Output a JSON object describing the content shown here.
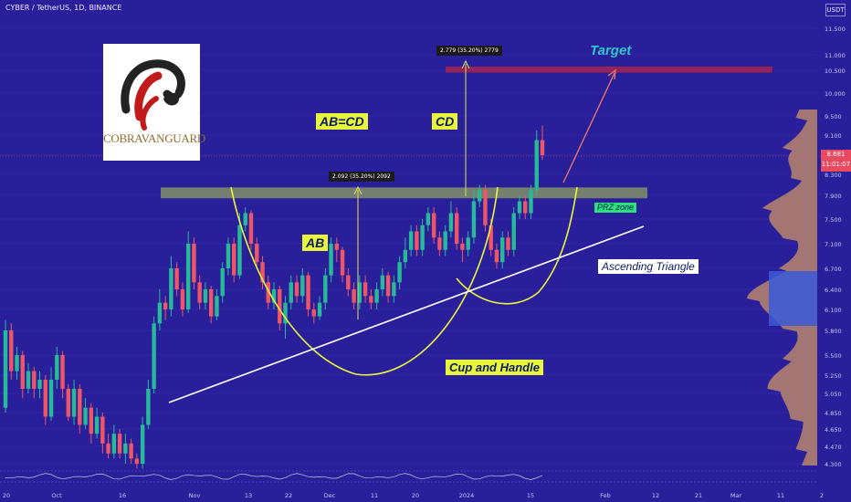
{
  "header": {
    "symbol_line": "CYBER / TetherUS, 1D, BINANCE",
    "currency": "USDT"
  },
  "colors": {
    "background": "#2a1f9a",
    "up": "#27b99a",
    "down": "#ee5566",
    "zone": "#7d8a6a",
    "target_zone": "#a5264f",
    "accent": "#e8f63a"
  },
  "logo": {
    "text": "COBRAVANGUARD",
    "icon": "cobra-icon"
  },
  "annotations": {
    "ab_cd": "AB=CD",
    "cd": "CD",
    "ab": "AB",
    "target": "Target",
    "prz": "PRZ zone",
    "ascending_triangle": "Ascending Triangle",
    "cup_handle": "Cup and Handle",
    "measure_1": "2.092 (35.20%) 2092",
    "measure_2": "2.779 (35.20%) 2779"
  },
  "price_badge": {
    "price": "8.681",
    "countdown": "11:01:07"
  },
  "chart_data": {
    "type": "candlestick",
    "y_axis_ticks": [
      "11.500",
      "11.000",
      "10.500",
      "10.000",
      "9.500",
      "9.100",
      "8.700",
      "8.300",
      "7.900",
      "7.500",
      "7.100",
      "6.700",
      "6.400",
      "6.100",
      "5.800",
      "5.500",
      "5.250",
      "5.050",
      "4.850",
      "4.650",
      "4.470",
      "4.300"
    ],
    "x_axis_ticks": [
      "20",
      "Oct",
      "16",
      "Nov",
      "13",
      "22",
      "Dec",
      "11",
      "20",
      "2024",
      "15",
      "Feb",
      "12",
      "21",
      "Mar",
      "11",
      "2"
    ],
    "last_price": 8.681,
    "prz_zone": [
      7.85,
      8.05
    ],
    "target_zone": [
      10.45,
      10.62
    ],
    "candles": [
      [
        4.9,
        5.8,
        5.95,
        4.85
      ],
      [
        5.8,
        5.3,
        5.9,
        5.2
      ],
      [
        5.3,
        5.5,
        5.6,
        5.2
      ],
      [
        5.5,
        5.1,
        5.55,
        5.0
      ],
      [
        5.1,
        5.3,
        5.4,
        5.05
      ],
      [
        5.3,
        5.1,
        5.35,
        5.0
      ],
      [
        5.1,
        5.2,
        5.3,
        5.0
      ],
      [
        5.2,
        4.8,
        5.25,
        4.7
      ],
      [
        4.8,
        5.2,
        5.35,
        4.75
      ],
      [
        5.2,
        5.5,
        5.6,
        5.1
      ],
      [
        5.5,
        5.1,
        5.55,
        5.0
      ],
      [
        5.1,
        4.8,
        5.15,
        4.75
      ],
      [
        4.8,
        5.1,
        5.2,
        4.7
      ],
      [
        5.1,
        4.7,
        5.15,
        4.6
      ],
      [
        4.7,
        4.9,
        5.0,
        4.65
      ],
      [
        4.9,
        4.6,
        4.95,
        4.5
      ],
      [
        4.6,
        4.8,
        4.9,
        4.55
      ],
      [
        4.8,
        4.5,
        4.85,
        4.4
      ],
      [
        4.5,
        4.4,
        4.6,
        4.35
      ],
      [
        4.4,
        4.6,
        4.7,
        4.35
      ],
      [
        4.6,
        4.4,
        4.65,
        4.35
      ],
      [
        4.4,
        4.5,
        4.6,
        4.3
      ],
      [
        4.5,
        4.35,
        4.55,
        4.3
      ],
      [
        4.35,
        4.3,
        4.4,
        4.25
      ],
      [
        4.3,
        4.7,
        4.8,
        4.25
      ],
      [
        4.7,
        5.1,
        5.2,
        4.65
      ],
      [
        5.1,
        5.9,
        6.0,
        5.05
      ],
      [
        5.9,
        6.2,
        6.4,
        5.8
      ],
      [
        6.2,
        6.1,
        6.3,
        5.95
      ],
      [
        6.1,
        6.7,
        6.9,
        6.0
      ],
      [
        6.7,
        6.4,
        6.8,
        6.3
      ],
      [
        6.4,
        6.1,
        6.5,
        6.0
      ],
      [
        6.1,
        7.1,
        7.3,
        6.05
      ],
      [
        7.1,
        6.5,
        7.2,
        6.4
      ],
      [
        6.5,
        6.2,
        6.6,
        6.1
      ],
      [
        6.2,
        6.4,
        6.5,
        6.1
      ],
      [
        6.4,
        6.0,
        6.45,
        5.9
      ],
      [
        6.0,
        6.3,
        6.4,
        5.95
      ],
      [
        6.3,
        6.7,
        6.8,
        6.2
      ],
      [
        6.7,
        7.1,
        7.2,
        6.6
      ],
      [
        7.1,
        6.6,
        7.2,
        6.5
      ],
      [
        6.6,
        7.4,
        7.6,
        6.55
      ],
      [
        7.4,
        7.6,
        7.7,
        7.3
      ],
      [
        7.6,
        7.1,
        7.65,
        7.0
      ],
      [
        7.1,
        6.8,
        7.2,
        6.7
      ],
      [
        6.8,
        6.5,
        6.9,
        6.4
      ],
      [
        6.5,
        6.2,
        6.6,
        6.1
      ],
      [
        6.2,
        6.4,
        6.5,
        6.1
      ],
      [
        6.4,
        5.9,
        6.45,
        5.8
      ],
      [
        5.9,
        6.2,
        6.3,
        5.7
      ],
      [
        6.2,
        6.5,
        6.6,
        6.1
      ],
      [
        6.5,
        6.3,
        6.6,
        6.2
      ],
      [
        6.3,
        6.6,
        6.7,
        6.2
      ],
      [
        6.6,
        6.1,
        6.65,
        6.0
      ],
      [
        6.1,
        6.0,
        6.2,
        5.9
      ],
      [
        6.0,
        6.2,
        6.3,
        5.95
      ],
      [
        6.2,
        6.6,
        6.7,
        6.1
      ],
      [
        6.6,
        7.1,
        7.2,
        6.5
      ],
      [
        7.1,
        7.0,
        7.2,
        6.8
      ],
      [
        7.0,
        6.6,
        7.05,
        6.5
      ],
      [
        6.6,
        6.4,
        6.7,
        6.3
      ],
      [
        6.4,
        6.2,
        6.5,
        6.1
      ],
      [
        6.2,
        6.5,
        6.6,
        6.1
      ],
      [
        6.5,
        6.3,
        6.6,
        6.2
      ],
      [
        6.3,
        6.2,
        6.4,
        6.1
      ],
      [
        6.2,
        6.4,
        6.5,
        6.1
      ],
      [
        6.4,
        6.6,
        6.7,
        6.3
      ],
      [
        6.6,
        6.3,
        6.65,
        6.2
      ],
      [
        6.3,
        6.5,
        6.6,
        6.2
      ],
      [
        6.5,
        6.8,
        6.9,
        6.4
      ],
      [
        6.8,
        7.0,
        7.2,
        6.7
      ],
      [
        7.0,
        7.3,
        7.4,
        6.9
      ],
      [
        7.3,
        7.0,
        7.4,
        6.9
      ],
      [
        7.0,
        7.4,
        7.5,
        6.9
      ],
      [
        7.4,
        7.6,
        7.7,
        7.3
      ],
      [
        7.6,
        7.2,
        7.7,
        7.1
      ],
      [
        7.2,
        7.0,
        7.3,
        6.9
      ],
      [
        7.0,
        7.3,
        7.4,
        6.9
      ],
      [
        7.3,
        7.6,
        7.8,
        7.2
      ],
      [
        7.6,
        7.1,
        7.7,
        7.0
      ],
      [
        7.1,
        7.0,
        7.2,
        6.8
      ],
      [
        7.0,
        7.2,
        7.3,
        6.9
      ],
      [
        7.2,
        7.8,
        8.0,
        7.1
      ],
      [
        7.8,
        8.0,
        8.1,
        7.7
      ],
      [
        8.0,
        7.4,
        8.1,
        7.3
      ],
      [
        7.4,
        7.0,
        7.5,
        6.9
      ],
      [
        7.0,
        6.8,
        7.1,
        6.7
      ],
      [
        6.8,
        7.2,
        7.3,
        6.7
      ],
      [
        7.2,
        7.0,
        7.3,
        6.9
      ],
      [
        7.0,
        7.6,
        7.7,
        6.9
      ],
      [
        7.6,
        7.8,
        7.9,
        7.5
      ],
      [
        7.8,
        7.6,
        7.9,
        7.5
      ],
      [
        7.6,
        8.0,
        8.1,
        7.5
      ],
      [
        8.0,
        9.0,
        9.2,
        7.9
      ],
      [
        9.0,
        8.7,
        9.3,
        8.6
      ]
    ]
  }
}
